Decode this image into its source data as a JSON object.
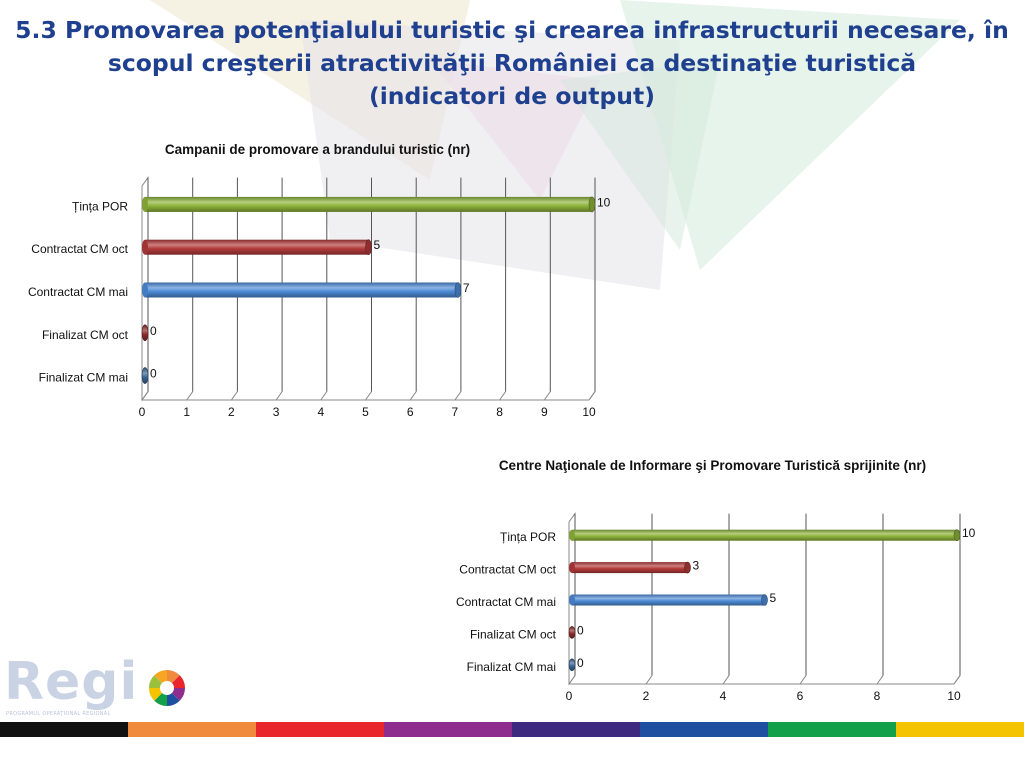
{
  "title_lines": [
    "5.3 Promovarea potenţialului turistic şi crearea infrastructurii necesare, în",
    "scopul creşterii atractivităţii României ca destinaţie turistică",
    "(indicatori de output)"
  ],
  "logo": {
    "text": "Regi",
    "subtitle": "PROGRAMUL OPERAŢIONAL REGIONAL"
  },
  "bottom_bar_colors": [
    "#111111",
    "#f08a3c",
    "#e8262c",
    "#8e2d8e",
    "#3e2a7e",
    "#1f4fa0",
    "#12a04a",
    "#f5c400"
  ],
  "series_colors": {
    "Țința POR": "#8db33a",
    "Contractat CM oct": "#b23a3a",
    "Contractat CM mai": "#4d8ad6",
    "Finalizat CM oct": "#8c2b2b",
    "Finalizat CM mai": "#3a6594"
  },
  "chart_data": [
    {
      "type": "bar",
      "orientation": "horizontal",
      "title": "Campanii de promovare a brandului turistic (nr)",
      "categories": [
        "Țința POR",
        "Contractat CM oct",
        "Contractat CM mai",
        "Finalizat CM oct",
        "Finalizat CM mai"
      ],
      "values": [
        10,
        5,
        7,
        0,
        0
      ],
      "xlim": [
        0,
        10
      ],
      "xticks": [
        "0",
        "1",
        "2",
        "3",
        "4",
        "5",
        "6",
        "7",
        "8",
        "9",
        "10"
      ],
      "grid": true,
      "data_labels": [
        "10",
        "5",
        "7",
        "0",
        "0"
      ]
    },
    {
      "type": "bar",
      "orientation": "horizontal",
      "title": "Centre Naţionale de Informare şi Promovare Turistică sprijinite (nr)",
      "categories": [
        "Țința POR",
        "Contractat CM oct",
        "Contractat CM mai",
        "Finalizat CM oct",
        "Finalizat CM mai"
      ],
      "values": [
        10,
        3,
        5,
        0,
        0
      ],
      "xlim": [
        0,
        10
      ],
      "xticks": [
        "0",
        "2",
        "4",
        "6",
        "8",
        "10"
      ],
      "grid": true,
      "data_labels": [
        "10",
        "3",
        "5",
        "0",
        "0"
      ]
    }
  ]
}
